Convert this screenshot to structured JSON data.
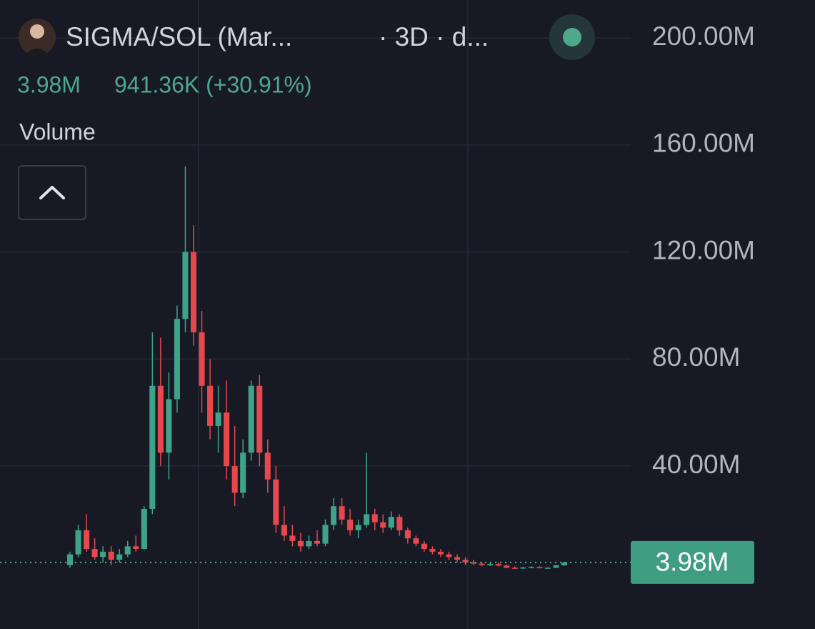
{
  "chart_data": {
    "type": "candlestick",
    "title": "SIGMA/SOL (Mar...",
    "subtitle": "· 3D · d...",
    "change": "941.36K (+30.91%)",
    "indicator": "Volume",
    "last": {
      "value": 3.98,
      "label": "3.98M"
    },
    "up_color": "#3fa38a",
    "down_color": "#e5484d",
    "grid": true,
    "ylim": [
      -20.9,
      214.2
    ],
    "yticks": [
      {
        "value": 40,
        "label": "40.00M"
      },
      {
        "value": 80,
        "label": "80.00M"
      },
      {
        "value": 120,
        "label": "120.00M"
      },
      {
        "value": 160,
        "label": "160.00M"
      },
      {
        "value": 200,
        "label": "200.00M"
      }
    ],
    "categories": [
      null,
      null,
      null,
      null,
      null,
      null,
      null,
      null,
      null,
      null,
      null,
      null,
      null,
      null,
      null,
      null,
      null,
      null,
      null,
      null,
      null,
      null,
      null,
      null,
      null,
      null,
      null,
      null,
      null,
      null,
      null,
      null,
      null,
      null,
      null,
      null,
      null,
      null,
      null,
      null,
      null,
      null,
      null,
      null,
      null,
      null,
      null,
      null,
      null,
      null,
      null,
      null,
      null,
      null,
      null,
      null,
      null,
      null,
      null,
      null,
      null
    ],
    "open": [
      3,
      7,
      16,
      9,
      6,
      8,
      5,
      7,
      10,
      9,
      24,
      70,
      45,
      65,
      95,
      120,
      90,
      70,
      55,
      60,
      40,
      30,
      45,
      70,
      45,
      35,
      18,
      14,
      12,
      10,
      12,
      11,
      18,
      25,
      20,
      16,
      18,
      22,
      19,
      17,
      21,
      16,
      13,
      11,
      9,
      8,
      7,
      6,
      5,
      4,
      3.5,
      3,
      3.4,
      2.8,
      2,
      1.8,
      2.1,
      2.3,
      1.9,
      2,
      2.9
    ],
    "high": [
      8,
      18,
      22,
      13,
      10,
      10,
      9,
      12,
      14,
      25,
      90,
      88,
      75,
      100,
      152,
      130,
      98,
      80,
      70,
      72,
      55,
      50,
      72,
      74,
      50,
      40,
      25,
      18,
      15,
      14,
      16,
      20,
      28,
      28,
      24,
      20,
      45,
      24,
      22,
      23,
      22,
      17,
      14,
      12,
      10,
      9,
      8,
      7,
      6,
      5,
      4,
      3.8,
      4,
      3.2,
      2.5,
      2.3,
      2.6,
      2.5,
      2.2,
      3,
      4.2
    ],
    "low": [
      2,
      6,
      8,
      5,
      4,
      3,
      4,
      6,
      8,
      9,
      22,
      40,
      35,
      60,
      90,
      85,
      60,
      50,
      45,
      35,
      25,
      28,
      42,
      40,
      30,
      15,
      12,
      10,
      8,
      9,
      10,
      10,
      16,
      18,
      14,
      13,
      17,
      16,
      15,
      16,
      14,
      11,
      10,
      8,
      7,
      6,
      5,
      4,
      3,
      3,
      2.5,
      2.6,
      2.5,
      1.8,
      1.6,
      1.5,
      1.8,
      1.7,
      1.6,
      1.9,
      2.8
    ],
    "close": [
      7,
      16,
      9,
      6,
      8,
      5,
      7,
      10,
      9,
      24,
      70,
      45,
      65,
      95,
      120,
      90,
      70,
      55,
      60,
      40,
      30,
      45,
      70,
      45,
      35,
      18,
      14,
      12,
      10,
      12,
      11,
      18,
      25,
      20,
      16,
      18,
      22,
      19,
      17,
      21,
      16,
      13,
      11,
      9,
      8,
      7,
      6,
      5,
      4,
      3.5,
      3,
      3.4,
      2.8,
      2,
      1.8,
      2.1,
      2.3,
      1.9,
      2,
      2.9,
      3.98
    ]
  }
}
